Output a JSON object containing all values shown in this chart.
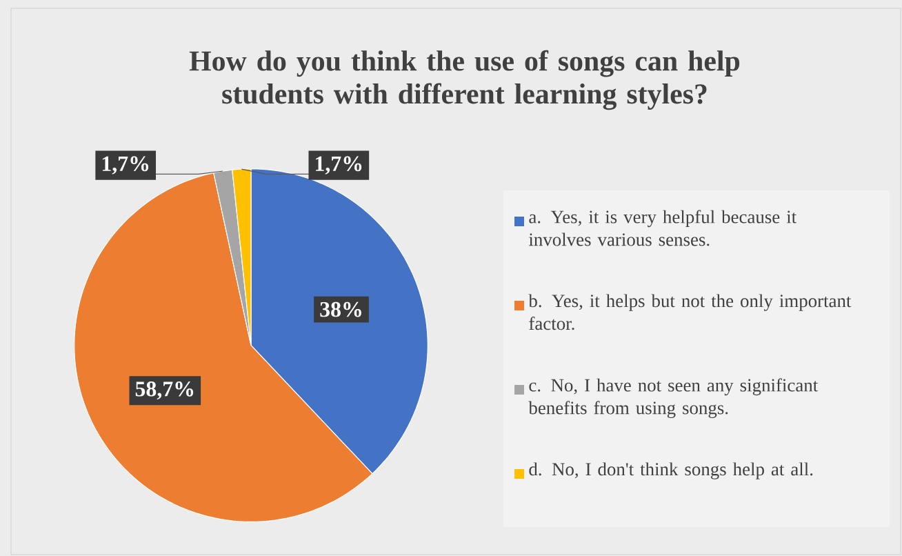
{
  "chart_data": {
    "type": "pie",
    "title": "How do you think the use of songs can help students with different learning styles?",
    "categories": [
      "a. Yes, it is very helpful because it involves various senses.",
      "b. Yes, it helps but not the only important factor.",
      "c. No, I have not seen any significant benefits from using songs.",
      "d. No, I don't think songs help at all."
    ],
    "values": [
      38,
      58.7,
      1.7,
      1.7
    ],
    "colors": [
      "#4472c4",
      "#ed7d31",
      "#a5a5a5",
      "#ffc000"
    ],
    "value_labels": [
      "38%",
      "58,7%",
      "1,7%",
      "1,7%"
    ],
    "legend": "right"
  }
}
